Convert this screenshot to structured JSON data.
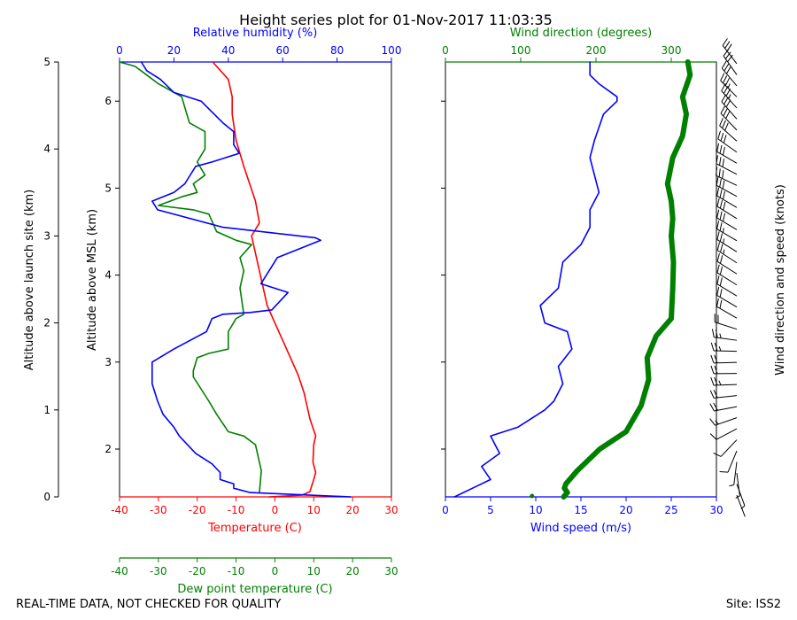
{
  "title": "Height series plot for 01-Nov-2017 11:03:35",
  "footer_left": "REAL-TIME DATA, NOT CHECKED FOR QUALITY",
  "footer_right": "Site: ISS2",
  "colors": {
    "temperature": "#ff0000",
    "dewpoint": "#008000",
    "rh": "#0000ff",
    "wind_speed": "#0000ff",
    "wind_dir": "#008000",
    "barbs": "#000000"
  },
  "chart_data": [
    {
      "type": "line",
      "title": "Thermodynamic profile",
      "left_axis": {
        "label": "Altitude above launch site (km)",
        "range": [
          0,
          5
        ],
        "ticks": [
          "0",
          "1",
          "2",
          "3",
          "4",
          "5"
        ]
      },
      "inner_axis": {
        "label": "Altitude above MSL (km)",
        "range": [
          1.45,
          6.45
        ],
        "ticks": [
          "2",
          "3",
          "4",
          "5",
          "6"
        ]
      },
      "x_top": {
        "label": "Relative humidity (%)",
        "range": [
          0,
          100
        ],
        "ticks": [
          "0",
          "20",
          "40",
          "60",
          "80",
          "100"
        ]
      },
      "x_bottom": {
        "label": "Temperature (C)",
        "range": [
          -40,
          30
        ],
        "ticks": [
          "-40",
          "-30",
          "-20",
          "-10",
          "0",
          "10",
          "20",
          "30"
        ]
      },
      "x_bottom2": {
        "label": "Dew point temperature (C)",
        "range": [
          -40,
          30
        ],
        "ticks": [
          "-40",
          "-30",
          "-20",
          "-10",
          "0",
          "10",
          "20",
          "30"
        ]
      },
      "series": [
        {
          "name": "Temperature (C)",
          "axis": "bottom",
          "points": [
            [
              -1.5,
              0
            ],
            [
              7,
              0.02
            ],
            [
              9,
              0.06
            ],
            [
              10,
              0.2
            ],
            [
              10.5,
              0.28
            ],
            [
              9.8,
              0.4
            ],
            [
              10,
              0.6
            ],
            [
              10.5,
              0.7
            ],
            [
              9,
              0.9
            ],
            [
              8,
              1.1
            ],
            [
              7.5,
              1.2
            ],
            [
              6,
              1.4
            ],
            [
              4,
              1.6
            ],
            [
              2,
              1.8
            ],
            [
              0,
              2
            ],
            [
              -2,
              2.2
            ],
            [
              -3,
              2.4
            ],
            [
              -4,
              2.6
            ],
            [
              -5,
              2.8
            ],
            [
              -6,
              3
            ],
            [
              -4,
              3.15
            ],
            [
              -5,
              3.4
            ],
            [
              -8,
              3.8
            ],
            [
              -10,
              4.1
            ],
            [
              -11,
              4.4
            ],
            [
              -11,
              4.6
            ],
            [
              -12,
              4.8
            ],
            [
              -15,
              4.95
            ],
            [
              -16,
              5
            ]
          ]
        },
        {
          "name": "Dew point temperature (C)",
          "axis": "bottom",
          "points": [
            [
              -4,
              0.05
            ],
            [
              -3.5,
              0.3
            ],
            [
              -4,
              0.4
            ],
            [
              -5,
              0.6
            ],
            [
              -8,
              0.7
            ],
            [
              -12,
              0.75
            ],
            [
              -15,
              0.95
            ],
            [
              -17,
              1.1
            ],
            [
              -21,
              1.38
            ],
            [
              -21,
              1.45
            ],
            [
              -20,
              1.6
            ],
            [
              -17,
              1.65
            ],
            [
              -12,
              1.7
            ],
            [
              -12,
              1.9
            ],
            [
              -10,
              2.05
            ],
            [
              -8,
              2.1
            ],
            [
              -9,
              2.4
            ],
            [
              -8,
              2.6
            ],
            [
              -9,
              2.75
            ],
            [
              -6,
              2.9
            ],
            [
              -10,
              2.95
            ],
            [
              -15,
              3.05
            ],
            [
              -17,
              3.25
            ],
            [
              -21,
              3.3
            ],
            [
              -30,
              3.35
            ],
            [
              -24,
              3.45
            ],
            [
              -20,
              3.5
            ],
            [
              -21,
              3.6
            ],
            [
              -18,
              3.7
            ],
            [
              -20,
              3.85
            ],
            [
              -18,
              4
            ],
            [
              -18,
              4.2
            ],
            [
              -22,
              4.3
            ],
            [
              -24,
              4.6
            ],
            [
              -30,
              4.75
            ],
            [
              -33,
              4.85
            ],
            [
              -36,
              4.95
            ],
            [
              -40,
              5
            ]
          ]
        },
        {
          "name": "Relative humidity (%)",
          "axis": "top",
          "points": [
            [
              85,
              0
            ],
            [
              48,
              0.05
            ],
            [
              42,
              0.1
            ],
            [
              42,
              0.15
            ],
            [
              37,
              0.2
            ],
            [
              37,
              0.28
            ],
            [
              34,
              0.38
            ],
            [
              28,
              0.5
            ],
            [
              22,
              0.7
            ],
            [
              20,
              0.8
            ],
            [
              16,
              0.95
            ],
            [
              14,
              1.1
            ],
            [
              12,
              1.3
            ],
            [
              12,
              1.55
            ],
            [
              20,
              1.7
            ],
            [
              32,
              1.9
            ],
            [
              34,
              2.05
            ],
            [
              38,
              2.1
            ],
            [
              48,
              2.12
            ],
            [
              56,
              2.15
            ],
            [
              62,
              2.35
            ],
            [
              52,
              2.45
            ],
            [
              55,
              2.6
            ],
            [
              58,
              2.75
            ],
            [
              66,
              2.85
            ],
            [
              74,
              2.95
            ],
            [
              72,
              2.98
            ],
            [
              38,
              3.1
            ],
            [
              14,
              3.3
            ],
            [
              12,
              3.4
            ],
            [
              20,
              3.5
            ],
            [
              24,
              3.6
            ],
            [
              28,
              3.8
            ],
            [
              34,
              3.85
            ],
            [
              44,
              3.95
            ],
            [
              42,
              4.05
            ],
            [
              42,
              4.2
            ],
            [
              38,
              4.3
            ],
            [
              30,
              4.55
            ],
            [
              20,
              4.65
            ],
            [
              15,
              4.8
            ],
            [
              10,
              4.9
            ],
            [
              8,
              5
            ]
          ]
        }
      ]
    },
    {
      "type": "line",
      "title": "Wind profile",
      "x_bottom": {
        "label": "Wind speed (m/s)",
        "range": [
          0,
          30
        ],
        "ticks": [
          "0",
          "5",
          "10",
          "15",
          "20",
          "25",
          "30"
        ]
      },
      "x_top": {
        "label": "Wind direction (degrees)",
        "range": [
          0,
          360
        ],
        "ticks": [
          "0",
          "100",
          "200",
          "300"
        ]
      },
      "right_label": "Wind direction and speed (knots)",
      "series": [
        {
          "name": "Wind speed (m/s)",
          "axis": "bottom",
          "points": [
            [
              1,
              0
            ],
            [
              3,
              0.1
            ],
            [
              5,
              0.2
            ],
            [
              4,
              0.35
            ],
            [
              6,
              0.5
            ],
            [
              5,
              0.7
            ],
            [
              8,
              0.8
            ],
            [
              11,
              1.0
            ],
            [
              12,
              1.1
            ],
            [
              13,
              1.3
            ],
            [
              12.5,
              1.5
            ],
            [
              14,
              1.7
            ],
            [
              13.5,
              1.9
            ],
            [
              11,
              2.0
            ],
            [
              10.5,
              2.2
            ],
            [
              12.5,
              2.4
            ],
            [
              13,
              2.7
            ],
            [
              15,
              2.9
            ],
            [
              16,
              3.1
            ],
            [
              16,
              3.3
            ],
            [
              17,
              3.5
            ],
            [
              16.5,
              3.7
            ],
            [
              16,
              3.9
            ],
            [
              16.5,
              4.1
            ],
            [
              17,
              4.25
            ],
            [
              17.5,
              4.4
            ],
            [
              19,
              4.55
            ],
            [
              19,
              4.6
            ],
            [
              17,
              4.75
            ],
            [
              16,
              4.85
            ],
            [
              16,
              5
            ]
          ]
        },
        {
          "name": "Wind direction (degrees)",
          "axis": "top",
          "points": [
            [
              157,
              0
            ],
            [
              162,
              0.05
            ],
            [
              158,
              0.1
            ],
            [
              160,
              0.15
            ],
            [
              175,
              0.3
            ],
            [
              205,
              0.55
            ],
            [
              240,
              0.75
            ],
            [
              260,
              1.05
            ],
            [
              270,
              1.35
            ],
            [
              268,
              1.6
            ],
            [
              280,
              1.85
            ],
            [
              300,
              2.05
            ],
            [
              302,
              2.4
            ],
            [
              303,
              2.7
            ],
            [
              300,
              3.0
            ],
            [
              302,
              3.2
            ],
            [
              300,
              3.4
            ],
            [
              295,
              3.6
            ],
            [
              302,
              3.9
            ],
            [
              315,
              4.15
            ],
            [
              320,
              4.4
            ],
            [
              315,
              4.6
            ],
            [
              325,
              4.85
            ],
            [
              322,
              5
            ]
          ]
        }
      ],
      "extra_points": [
        {
          "series": "Wind direction (degrees)",
          "points": [
            [
              115,
              0.01
            ]
          ]
        }
      ],
      "barbs": {
        "count": 40
      }
    }
  ]
}
